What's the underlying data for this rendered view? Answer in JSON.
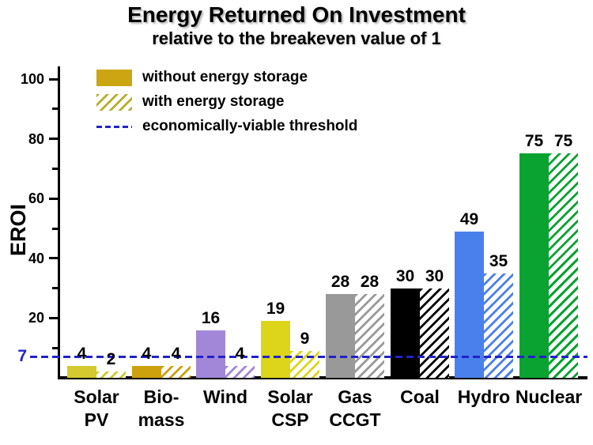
{
  "title": "Energy Returned On Investment",
  "subtitle": "relative to the breakeven value of 1",
  "threshold_axis_label": "7",
  "legend": [
    {
      "label": "without energy storage",
      "swatch": "solid",
      "color": "#cca513"
    },
    {
      "label": "with energy storage",
      "swatch": "hatched",
      "color": "#b9ae2a"
    },
    {
      "label": "economically-viable threshold",
      "swatch": "dashed-line",
      "color": "#2222cc"
    }
  ],
  "chart_data": {
    "type": "bar",
    "title": "Energy Returned On Investment",
    "subtitle": "relative to the breakeven value of 1",
    "xlabel": "",
    "ylabel": "EROI",
    "ylim": [
      0,
      104
    ],
    "yticks_major": [
      20,
      40,
      60,
      80,
      100
    ],
    "yticks_minor": [
      10,
      30,
      50,
      70,
      90
    ],
    "grid": false,
    "legend_position": "top-left",
    "categories": [
      "Solar PV",
      "Bio-mass",
      "Wind",
      "Solar CSP",
      "Gas CCGT",
      "Coal",
      "Hydro",
      "Nuclear"
    ],
    "category_label_lines": [
      [
        "Solar",
        "PV"
      ],
      [
        "Bio-",
        "mass"
      ],
      [
        "Wind"
      ],
      [
        "Solar",
        "CSP"
      ],
      [
        "Gas",
        "CCGT"
      ],
      [
        "Coal"
      ],
      [
        "Hydro"
      ],
      [
        "Nuclear"
      ]
    ],
    "bar_colors": [
      "#d2ca2e",
      "#cda10e",
      "#a287d8",
      "#ddd51a",
      "#999999",
      "#000000",
      "#4a80ec",
      "#0aa331"
    ],
    "series": [
      {
        "name": "without energy storage",
        "style": "solid",
        "values": [
          4,
          4,
          16,
          19,
          28,
          30,
          49,
          75
        ]
      },
      {
        "name": "with energy storage",
        "style": "hatched",
        "values": [
          2,
          4,
          4,
          9,
          28,
          30,
          35,
          75
        ]
      }
    ],
    "threshold": {
      "value": 7,
      "label": "economically-viable threshold",
      "color": "#2222cc"
    }
  }
}
